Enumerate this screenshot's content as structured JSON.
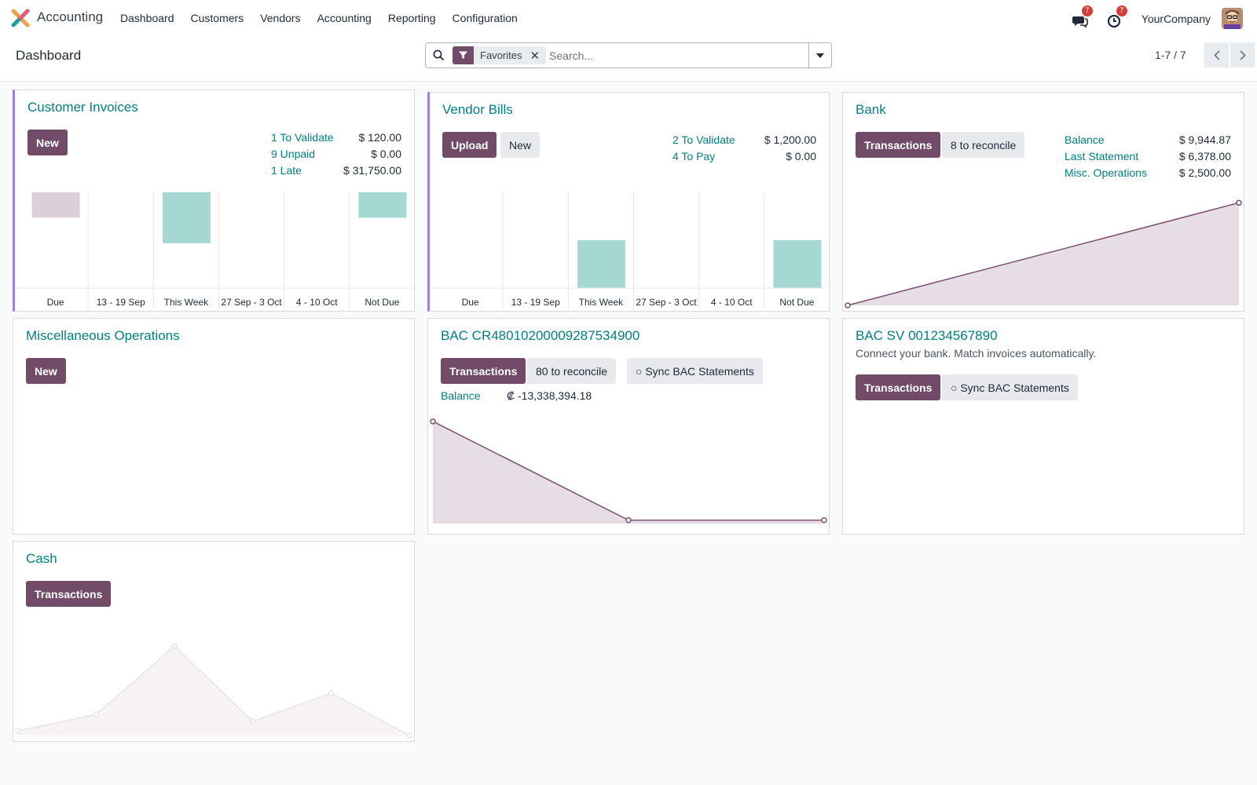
{
  "navbar": {
    "app_name": "Accounting",
    "menu": [
      "Dashboard",
      "Customers",
      "Vendors",
      "Accounting",
      "Reporting",
      "Configuration"
    ],
    "messages_count": "7",
    "activities_count": "7",
    "company": "YourCompany"
  },
  "control_panel": {
    "breadcrumb": "Dashboard",
    "facet_label": "Favorites",
    "search_placeholder": "Search...",
    "pager": "1-7 / 7"
  },
  "cards": {
    "customer_invoices": {
      "title": "Customer Invoices",
      "new_label": "New",
      "stats": [
        {
          "label": "1 To Validate",
          "value": "$ 120.00"
        },
        {
          "label": "9 Unpaid",
          "value": "$ 0.00"
        },
        {
          "label": "1 Late",
          "value": "$ 31,750.00"
        }
      ]
    },
    "vendor_bills": {
      "title": "Vendor Bills",
      "upload_label": "Upload",
      "new_label": "New",
      "stats": [
        {
          "label": "2 To Validate",
          "value": "$ 1,200.00"
        },
        {
          "label": "4 To Pay",
          "value": "$ 0.00"
        }
      ]
    },
    "bank": {
      "title": "Bank",
      "transactions_label": "Transactions",
      "reconcile_label": "8 to reconcile",
      "stats": [
        {
          "label": "Balance",
          "value": "$ 9,944.87"
        },
        {
          "label": "Last Statement",
          "value": "$ 6,378.00"
        },
        {
          "label": "Misc. Operations",
          "value": "$ 2,500.00"
        }
      ]
    },
    "misc": {
      "title": "Miscellaneous Operations",
      "new_label": "New"
    },
    "bac_cr": {
      "title": "BAC CR48010200009287534900",
      "transactions_label": "Transactions",
      "reconcile_label": "80 to reconcile",
      "sync_label": "○ Sync BAC Statements",
      "balance_label": "Balance",
      "balance_value": "₡ -13,338,394.18"
    },
    "bac_sv": {
      "title": "BAC SV 001234567890",
      "description": "Connect your bank. Match invoices automatically.",
      "transactions_label": "Transactions",
      "sync_label": "○ Sync BAC Statements"
    },
    "cash": {
      "title": "Cash",
      "transactions_label": "Transactions"
    }
  },
  "colors": {
    "primary": "#714b67",
    "link": "#017e84",
    "bar_past": "#ddcfd9",
    "bar_future": "#a5d8d3",
    "line": "#7c4f70",
    "area": "#e7dee5"
  },
  "chart_data": [
    {
      "type": "bar",
      "categories": [
        "Due",
        "13 - 19 Sep",
        "This Week",
        "27 Sep - 3 Oct",
        "4 - 10 Oct",
        "Not Due"
      ],
      "series": [
        {
          "name": "",
          "values": [
            -1750,
            0,
            -3500,
            0,
            0,
            -1750
          ]
        }
      ],
      "ylim": [
        -6600,
        0
      ]
    },
    {
      "type": "bar",
      "categories": [
        "Due",
        "13 - 19 Sep",
        "This Week",
        "27 Sep - 3 Oct",
        "4 - 10 Oct",
        "Not Due"
      ],
      "series": [
        {
          "name": "",
          "values": [
            0,
            0,
            1000,
            0,
            0,
            1000
          ]
        }
      ],
      "ylim": [
        0,
        2000
      ]
    },
    {
      "type": "area",
      "x": [
        0,
        1
      ],
      "values": [
        0,
        9944.87
      ],
      "ylim": [
        0,
        10500
      ]
    },
    {
      "type": "area",
      "x": [
        0,
        1,
        2
      ],
      "values": [
        0,
        -13338394.18,
        -13338394.18
      ],
      "ylim": [
        -13800000,
        300000
      ]
    },
    {
      "type": "area",
      "x": [
        0,
        1,
        2,
        3,
        4,
        5
      ],
      "values": [
        2,
        9,
        38,
        6,
        18,
        0
      ],
      "ylim": [
        0,
        45
      ]
    }
  ]
}
